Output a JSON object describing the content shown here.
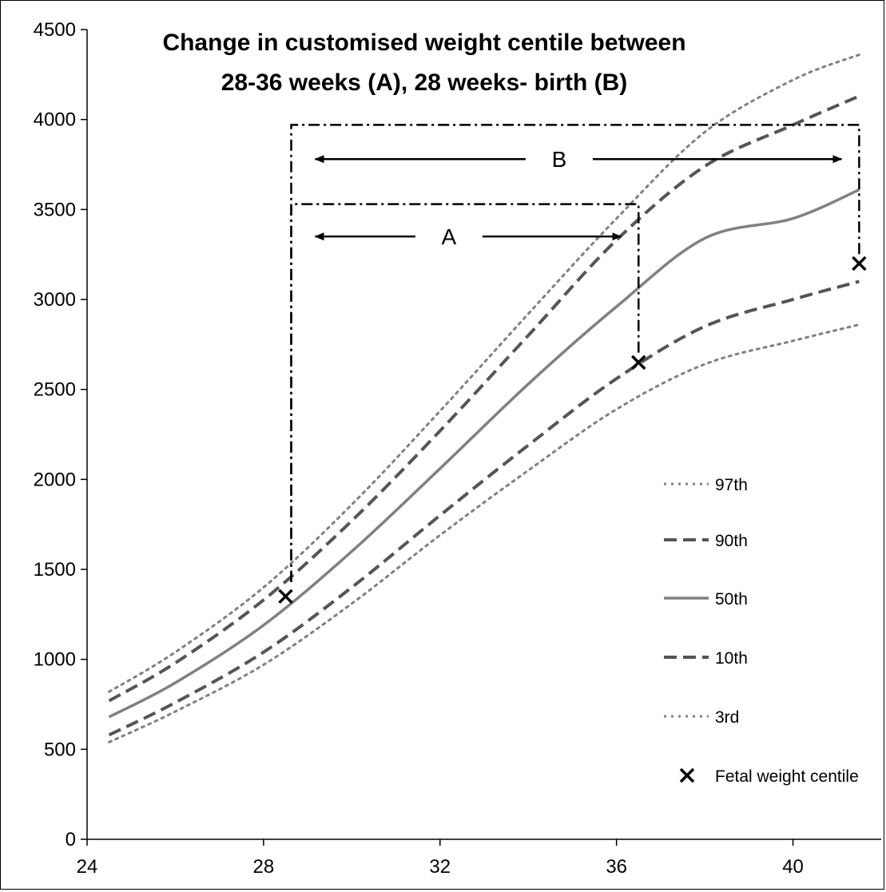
{
  "chart_data": {
    "type": "line",
    "title": "Change in customised weight centile between",
    "subtitle": "28-36 weeks (A), 28 weeks- birth (B)",
    "xlabel": "",
    "ylabel": "",
    "xlim": [
      24,
      42
    ],
    "ylim": [
      0,
      4500
    ],
    "x_ticks": [
      24,
      28,
      32,
      36,
      40
    ],
    "y_ticks": [
      0,
      500,
      1000,
      1500,
      2000,
      2500,
      3000,
      3500,
      4000,
      4500
    ],
    "grid": false,
    "legend_position": "right",
    "x": [
      24.5,
      26,
      28,
      30,
      32,
      34,
      36,
      38,
      40,
      41.5
    ],
    "series": [
      {
        "name": "97th",
        "style": "dotted",
        "color": "#808080",
        "values": [
          820,
          1040,
          1400,
          1860,
          2380,
          2920,
          3450,
          3930,
          4220,
          4360
        ]
      },
      {
        "name": "90th",
        "style": "dashed",
        "color": "#555555",
        "values": [
          770,
          980,
          1330,
          1770,
          2270,
          2800,
          3330,
          3740,
          3970,
          4130
        ]
      },
      {
        "name": "50th",
        "style": "solid",
        "color": "#808080",
        "values": [
          680,
          870,
          1190,
          1600,
          2060,
          2530,
          2960,
          3340,
          3450,
          3610
        ]
      },
      {
        "name": "10th",
        "style": "dashed",
        "color": "#555555",
        "values": [
          580,
          760,
          1040,
          1400,
          1800,
          2190,
          2560,
          2850,
          3000,
          3100
        ]
      },
      {
        "name": "3rd",
        "style": "dotted",
        "color": "#808080",
        "values": [
          540,
          710,
          970,
          1310,
          1690,
          2050,
          2390,
          2640,
          2770,
          2860
        ]
      }
    ],
    "fetal_weight_points": {
      "name": "Fetal weight centile",
      "x": [
        28.5,
        36.5,
        41.5
      ],
      "y": [
        1350,
        2650,
        3200
      ]
    },
    "annotations": {
      "A": {
        "label": "A",
        "x_start": 28.5,
        "x_end": 36.5,
        "y_bracket": 3530,
        "arrow_y": 3350
      },
      "B": {
        "label": "B",
        "x_start": 28.5,
        "x_end": 41.5,
        "y_bracket": 3970,
        "arrow_y": 3780
      }
    }
  }
}
